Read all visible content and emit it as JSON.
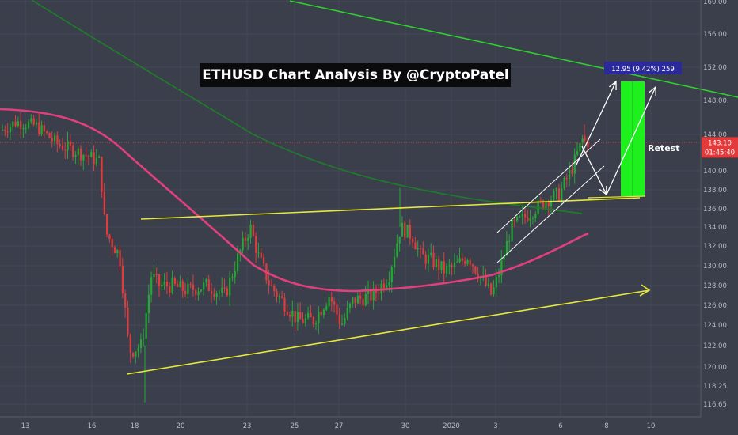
{
  "title": "ETHUSD Chart Analysis By @CryptoPatel",
  "colors": {
    "background": "#3b3e4b",
    "grid": "#454857",
    "bull": "#22ab34",
    "bear": "#e33b3b",
    "ma_pink": "#e0407c",
    "ma_green": "#1f7a2c",
    "trend_green": "#2ed02e",
    "yellow": "#e8e83a",
    "white": "#ffffff",
    "target_box": "#1ef01e",
    "price_line": "#c23a3a",
    "current_price_tag": "#e33b3b",
    "measure_tag": "#2a2a9c"
  },
  "chart_data": {
    "type": "candlestick",
    "symbol": "ETHUSD",
    "x_ticks": [
      "13",
      "16",
      "18",
      "20",
      "23",
      "25",
      "27",
      "30",
      "2020",
      "3",
      "6",
      "8",
      "10"
    ],
    "y_ticks": [
      "160.00",
      "156.00",
      "152.00",
      "148.00",
      "144.00",
      "140.00",
      "138.00",
      "136.00",
      "134.00",
      "132.00",
      "130.00",
      "128.00",
      "126.00",
      "124.00",
      "122.00",
      "120.00",
      "118.25",
      "116.65"
    ],
    "current_price": "143.10",
    "countdown": "01:45:40",
    "measure_label": "12.95 (9.42%) 259",
    "annotation": "Retest",
    "key_prices": {
      "current": 143.1,
      "target": 150.4,
      "support": 137.3
    },
    "candles_note": "hourly candles from 13 Dec 2019 to 7 Jan 2020, path from 145 down to about 120, range 124–138, breakout to about 144",
    "path": [
      [
        0,
        144.5
      ],
      [
        20,
        145.5
      ],
      [
        45,
        145
      ],
      [
        70,
        143
      ],
      [
        100,
        142
      ],
      [
        125,
        141
      ],
      [
        132,
        133.5
      ],
      [
        150,
        131
      ],
      [
        162,
        121.5
      ],
      [
        178,
        122
      ],
      [
        190,
        129
      ],
      [
        200,
        128
      ],
      [
        215,
        128
      ],
      [
        235,
        127.5
      ],
      [
        260,
        128
      ],
      [
        283,
        127
      ],
      [
        300,
        131
      ],
      [
        315,
        134
      ],
      [
        325,
        131
      ],
      [
        340,
        128
      ],
      [
        360,
        126
      ],
      [
        375,
        124.5
      ],
      [
        395,
        124.5
      ],
      [
        415,
        127
      ],
      [
        430,
        124
      ],
      [
        445,
        126.5
      ],
      [
        470,
        127
      ],
      [
        490,
        129
      ],
      [
        505,
        134
      ],
      [
        520,
        133
      ],
      [
        530,
        131
      ],
      [
        545,
        130.5
      ],
      [
        560,
        129.5
      ],
      [
        575,
        130
      ],
      [
        590,
        131
      ],
      [
        605,
        129
      ],
      [
        620,
        127
      ],
      [
        630,
        129.5
      ],
      [
        645,
        134
      ],
      [
        660,
        135
      ],
      [
        675,
        136
      ],
      [
        690,
        137
      ],
      [
        705,
        137.5
      ],
      [
        720,
        140
      ],
      [
        735,
        143.5
      ],
      [
        745,
        143
      ]
    ]
  }
}
